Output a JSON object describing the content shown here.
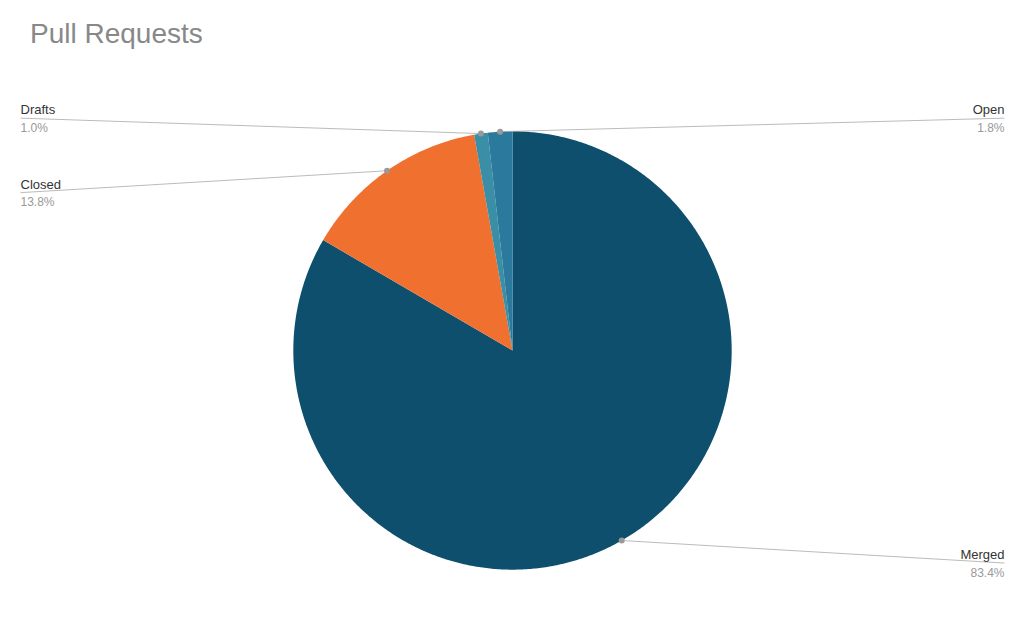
{
  "chart_data": {
    "type": "pie",
    "title": "Pull Requests",
    "categories": [
      "Merged",
      "Closed",
      "Drafts",
      "Open"
    ],
    "values": [
      83.4,
      13.8,
      1.0,
      1.8
    ],
    "value_labels": [
      "83.4%",
      "13.8%",
      "1.0%",
      "1.8%"
    ],
    "colors": [
      "#0d4f6c",
      "#f07030",
      "#3a8ea5",
      "#2b7a9e"
    ]
  }
}
